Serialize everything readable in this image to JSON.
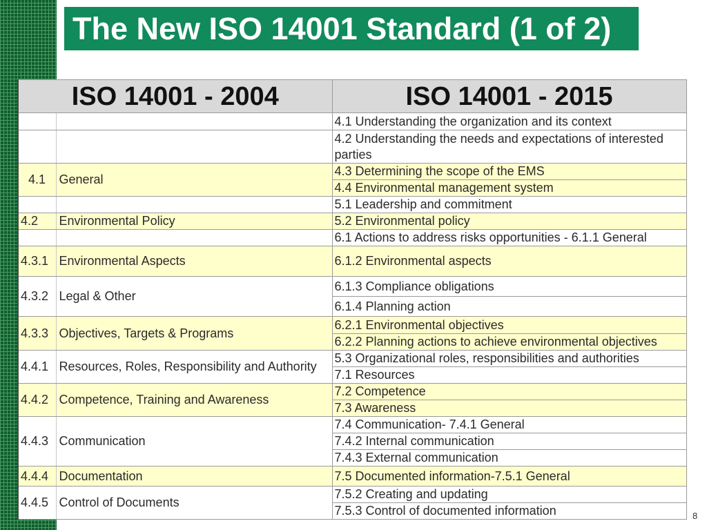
{
  "slide": {
    "title": "The New ISO 14001 Standard (1 of 2)",
    "page_number": "8"
  },
  "colors": {
    "title_bar": "#118A5C",
    "title_text": "#FFFFFF",
    "header_bg": "#D9D9D9",
    "highlight_row": "#FFFFCC",
    "strip": "#0D5E2E",
    "strip_line": "#4E9A62"
  },
  "comparison_table": {
    "header_2004": "ISO 14001 - 2004",
    "header_2015": "ISO 14001 - 2015",
    "clauses_2004": [
      {
        "number": "4.1",
        "title": "General",
        "highlighted": true
      },
      {
        "number": "4.2",
        "title": "Environmental Policy",
        "highlighted": true
      },
      {
        "number": "4.3.1",
        "title": "Environmental Aspects",
        "highlighted": true
      },
      {
        "number": "4.3.2",
        "title": "Legal & Other",
        "highlighted": false
      },
      {
        "number": "4.3.3",
        "title": "Objectives, Targets & Programs",
        "highlighted": true
      },
      {
        "number": "4.4.1",
        "title": "Resources, Roles, Responsibility and Authority",
        "highlighted": false
      },
      {
        "number": "4.4.2",
        "title": "Competence, Training and Awareness",
        "highlighted": true
      },
      {
        "number": "4.4.3",
        "title": "Communication",
        "highlighted": false
      },
      {
        "number": "4.4.4",
        "title": "Documentation",
        "highlighted": true
      },
      {
        "number": "4.4.5",
        "title": "Control of Documents",
        "highlighted": false
      }
    ],
    "clauses_2015": [
      {
        "text": "4.1 Understanding the organization and its context",
        "highlighted": false
      },
      {
        "text": "4.2 Understanding the needs and expectations of interested parties",
        "highlighted": false
      },
      {
        "text": "4.3 Determining the scope of the EMS",
        "highlighted": true
      },
      {
        "text": "4.4 Environmental management system",
        "highlighted": true
      },
      {
        "text": "5.1 Leadership and commitment",
        "highlighted": false
      },
      {
        "text": "5.2 Environmental policy",
        "highlighted": true
      },
      {
        "text": "6.1 Actions to address risks opportunities - 6.1.1 General",
        "highlighted": false
      },
      {
        "text": "6.1.2 Environmental aspects",
        "highlighted": true
      },
      {
        "text": "6.1.3 Compliance obligations",
        "highlighted": false
      },
      {
        "text": "6.1.4 Planning action",
        "highlighted": false
      },
      {
        "text": "6.2.1 Environmental objectives",
        "highlighted": true
      },
      {
        "text": "6.2.2 Planning actions to achieve environmental objectives",
        "highlighted": true
      },
      {
        "text": "5.3 Organizational roles, responsibilities and authorities",
        "highlighted": false
      },
      {
        "text": "7.1 Resources",
        "highlighted": false
      },
      {
        "text": "7.2 Competence",
        "highlighted": true
      },
      {
        "text": "7.3 Awareness",
        "highlighted": true
      },
      {
        "text": "7.4 Communication- 7.4.1 General",
        "highlighted": false
      },
      {
        "text": "7.4.2 Internal communication",
        "highlighted": false
      },
      {
        "text": "7.4.3 External communication",
        "highlighted": false
      },
      {
        "text": "7.5 Documented information-7.5.1 General",
        "highlighted": true
      },
      {
        "text": "7.5.2 Creating and updating",
        "highlighted": false
      },
      {
        "text": "7.5.3 Control of documented information",
        "highlighted": false
      }
    ]
  }
}
